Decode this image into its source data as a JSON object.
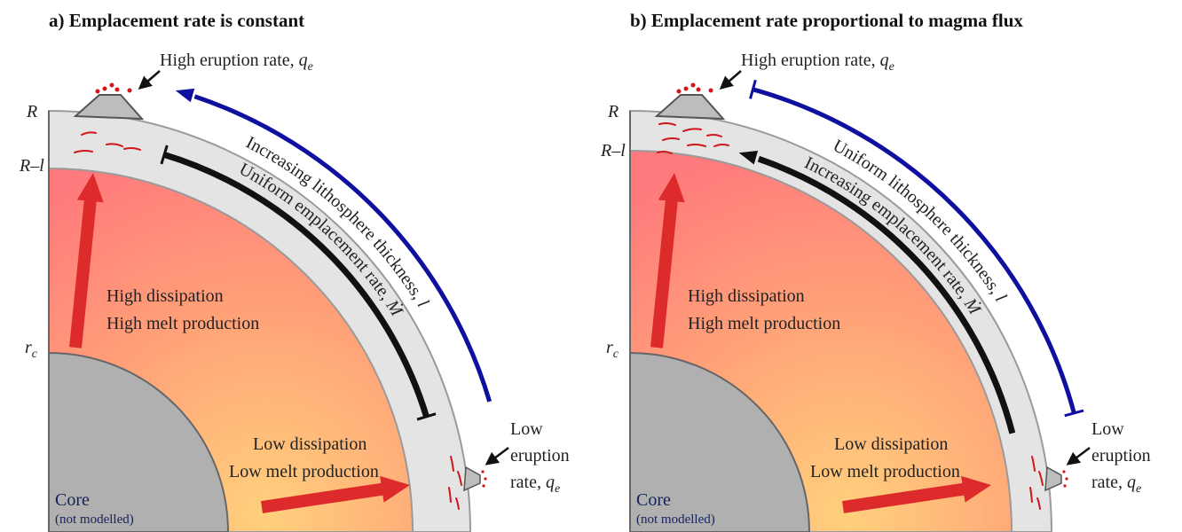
{
  "panels": [
    {
      "title": "a) Emplacement rate is constant",
      "radius_labels": {
        "outer": "R",
        "lithosphere_base": "R–l",
        "core": "r",
        "core_subscript": "c"
      },
      "high_eruption": {
        "text": "High eruption rate,",
        "symbol": "q",
        "subscript": "e"
      },
      "low_eruption": {
        "lines": [
          "Low",
          "eruption",
          "rate,"
        ],
        "symbol": "q",
        "subscript": "e"
      },
      "high_region": [
        "High dissipation",
        "High melt production"
      ],
      "low_region": [
        "Low dissipation",
        "Low melt production"
      ],
      "core": {
        "name": "Core",
        "note": "(not modelled)"
      },
      "inner_arc": {
        "text": "Uniform emplacement rate,",
        "symbol": "Ṁ"
      },
      "outer_arc": {
        "text": "Increasing lithosphere thickness,",
        "symbol": "l"
      }
    },
    {
      "title": "b) Emplacement rate proportional to magma flux",
      "radius_labels": {
        "outer": "R",
        "lithosphere_base": "R–l",
        "core": "r",
        "core_subscript": "c"
      },
      "high_eruption": {
        "text": "High eruption rate,",
        "symbol": "q",
        "subscript": "e"
      },
      "low_eruption": {
        "lines": [
          "Low",
          "eruption",
          "rate,"
        ],
        "symbol": "q",
        "subscript": "e"
      },
      "high_region": [
        "High dissipation",
        "High melt production"
      ],
      "low_region": [
        "Low dissipation",
        "Low melt production"
      ],
      "core": {
        "name": "Core",
        "note": "(not modelled)"
      },
      "inner_arc": {
        "text": "Increasing emplacement rate,",
        "symbol": "Ṁ"
      },
      "outer_arc": {
        "text": "Uniform lithosphere thickness,",
        "symbol": "l"
      }
    }
  ]
}
